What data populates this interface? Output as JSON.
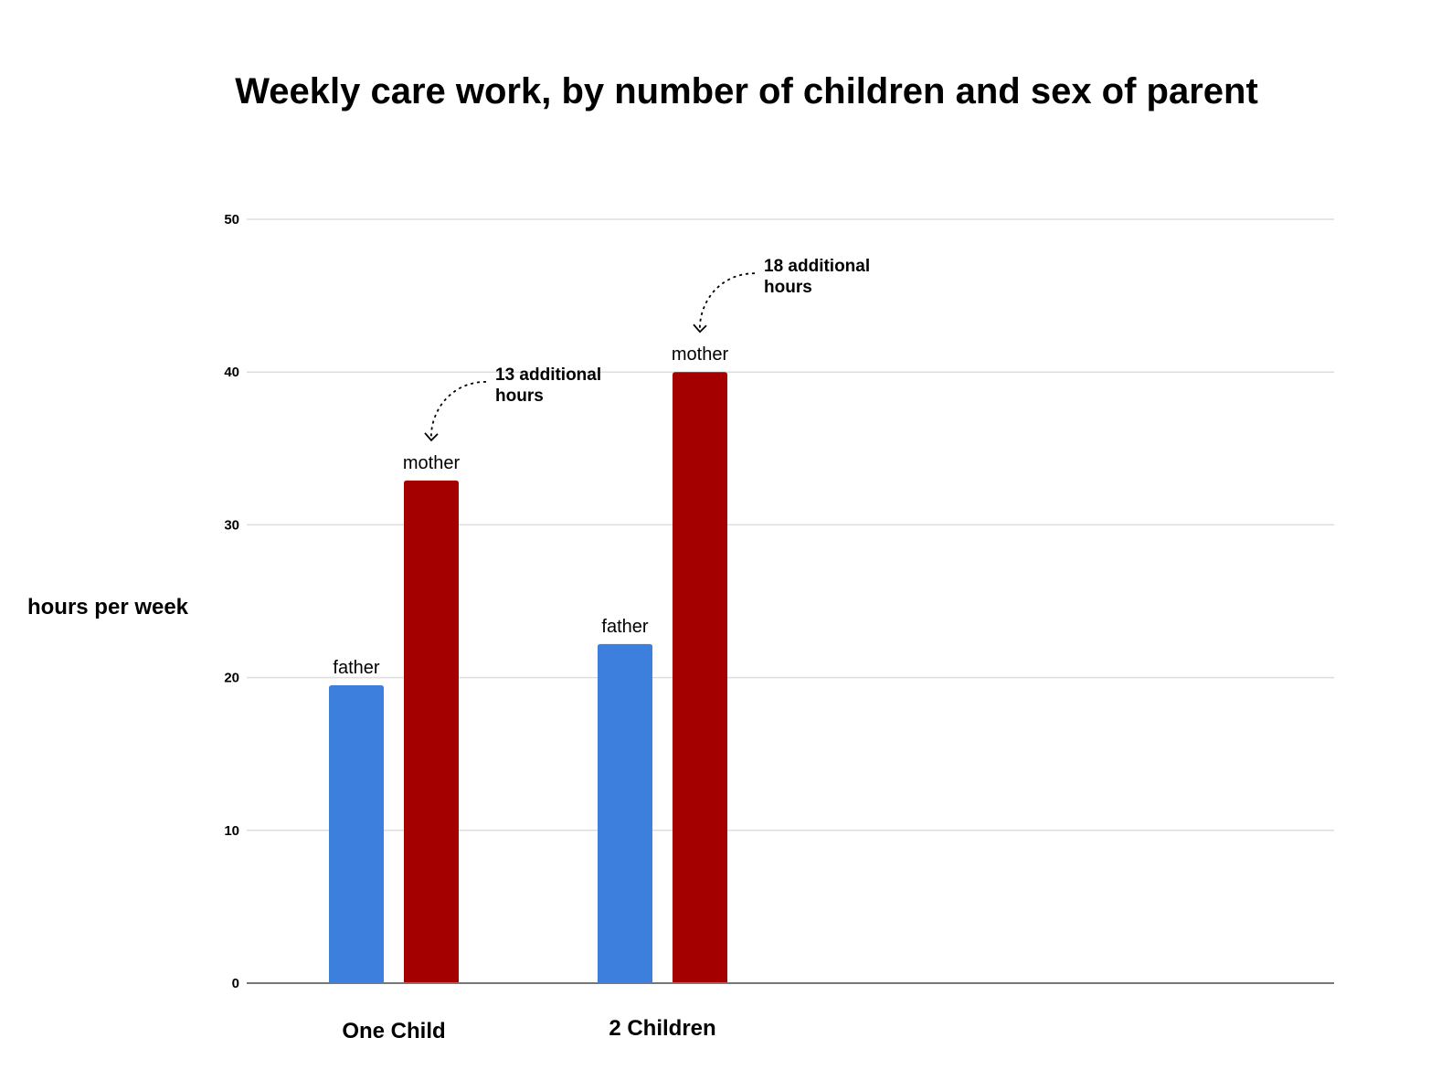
{
  "chart_data": {
    "type": "bar",
    "title": "Weekly care work, by number of children and sex of parent",
    "ylabel": "hours per week",
    "xlabel": "",
    "ylim": [
      0,
      50
    ],
    "yticks": [
      "0",
      "10",
      "20",
      "30",
      "40",
      "50"
    ],
    "grid": true,
    "categories": [
      "One Child",
      "2 Children"
    ],
    "series": [
      {
        "name": "father",
        "color": "#3c7fdc",
        "values": [
          19.5,
          22.2
        ]
      },
      {
        "name": "mother",
        "color": "#a50000",
        "values": [
          32.9,
          40.0
        ]
      }
    ],
    "annotations": [
      {
        "category": "One Child",
        "target": "mother",
        "lines": [
          "13 additional",
          "hours"
        ]
      },
      {
        "category": "2 Children",
        "target": "mother",
        "lines": [
          "18 additional",
          "hours"
        ]
      }
    ]
  }
}
